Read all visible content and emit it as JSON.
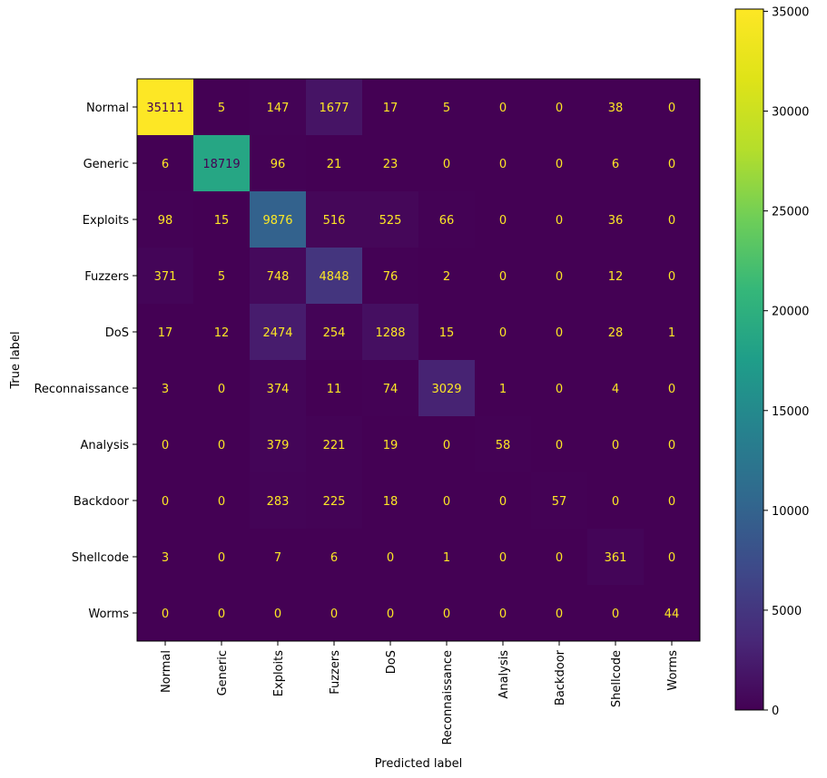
{
  "chart_data": {
    "type": "heatmap",
    "title": "",
    "xlabel": "Predicted label",
    "ylabel": "True label",
    "x_categories": [
      "Normal",
      "Generic",
      "Exploits",
      "Fuzzers",
      "DoS",
      "Reconnaissance",
      "Analysis",
      "Backdoor",
      "Shellcode",
      "Worms"
    ],
    "y_categories": [
      "Normal",
      "Generic",
      "Exploits",
      "Fuzzers",
      "DoS",
      "Reconnaissance",
      "Analysis",
      "Backdoor",
      "Shellcode",
      "Worms"
    ],
    "values": [
      [
        35111,
        5,
        147,
        1677,
        17,
        5,
        0,
        0,
        38,
        0
      ],
      [
        6,
        18719,
        96,
        21,
        23,
        0,
        0,
        0,
        6,
        0
      ],
      [
        98,
        15,
        9876,
        516,
        525,
        66,
        0,
        0,
        36,
        0
      ],
      [
        371,
        5,
        748,
        4848,
        76,
        2,
        0,
        0,
        12,
        0
      ],
      [
        17,
        12,
        2474,
        254,
        1288,
        15,
        0,
        0,
        28,
        1
      ],
      [
        3,
        0,
        374,
        11,
        74,
        3029,
        1,
        0,
        4,
        0
      ],
      [
        0,
        0,
        379,
        221,
        19,
        0,
        58,
        0,
        0,
        0
      ],
      [
        0,
        0,
        283,
        225,
        18,
        0,
        0,
        57,
        0,
        0
      ],
      [
        3,
        0,
        7,
        6,
        0,
        1,
        0,
        0,
        361,
        0
      ],
      [
        0,
        0,
        0,
        0,
        0,
        0,
        0,
        0,
        0,
        44
      ]
    ],
    "colormap": "viridis",
    "value_range": [
      0,
      35111
    ],
    "colorbar_ticks": [
      0,
      5000,
      10000,
      15000,
      20000,
      25000,
      30000,
      35000
    ],
    "text_color_dark": "#fde725",
    "text_color_light": "#440154"
  }
}
